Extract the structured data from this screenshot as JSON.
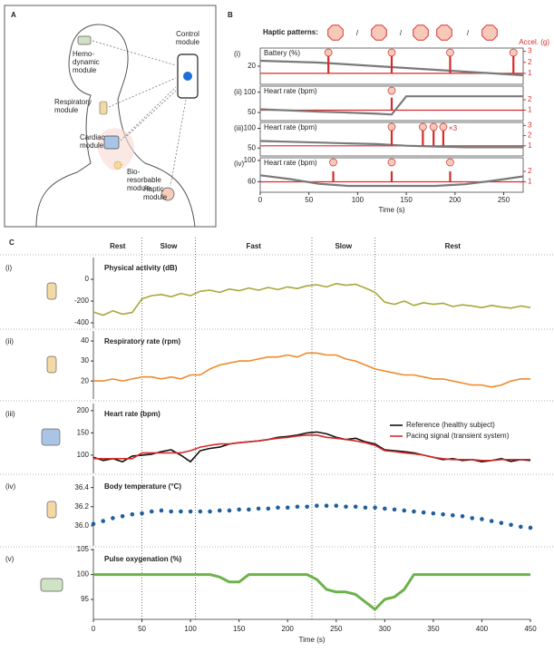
{
  "panel_a": {
    "label": "A",
    "modules": [
      {
        "name": [
          "Hemo-",
          "dynamic",
          "module"
        ]
      },
      {
        "name": [
          "Control",
          "module"
        ]
      },
      {
        "name": [
          "Respiratory",
          "module"
        ]
      },
      {
        "name": [
          "Cardiac",
          "module"
        ]
      },
      {
        "name": [
          "Bio-",
          "resorbable",
          "module"
        ]
      },
      {
        "name": [
          "Haptic",
          "module"
        ]
      }
    ]
  },
  "panel_b": {
    "label": "B",
    "haptic_label": "Haptic patterns:",
    "separator": "/",
    "right_axis_label": "Accel. (g)",
    "x_label": "Time (s)",
    "xlim": [
      0,
      270
    ],
    "xticks": [
      0,
      50,
      100,
      150,
      200,
      250
    ],
    "x": [
      0,
      30,
      60,
      90,
      120,
      135,
      150,
      180,
      210,
      240,
      270
    ],
    "y2lim": [
      0,
      3.3
    ],
    "accel_baseline": 1,
    "charts": [
      {
        "roman": "(i)",
        "title": "Battery (%)",
        "ylim": [
          10,
          30
        ],
        "yticks": [
          20
        ],
        "values": [
          23,
          22.5,
          22,
          21,
          20,
          19.5,
          19,
          18,
          17,
          16,
          15
        ],
        "y2ticks": [
          1,
          2,
          3
        ],
        "spikes_x": [
          70,
          135,
          195,
          260
        ],
        "spikes": [
          3,
          3,
          3,
          3
        ]
      },
      {
        "roman": "(ii)",
        "title": "Heart rate (bpm)",
        "ylim": [
          30,
          115
        ],
        "yticks": [
          50,
          100
        ],
        "values": [
          58,
          55,
          52,
          50,
          47,
          45,
          90,
          90,
          90,
          90,
          90
        ],
        "y2ticks": [
          1,
          2
        ],
        "spikes_x": [
          135
        ],
        "spikes": [
          2.2
        ]
      },
      {
        "roman": "(iii)",
        "title": "Heart rate (bpm)",
        "ylim": [
          30,
          115
        ],
        "yticks": [
          50,
          100
        ],
        "values": [
          68,
          66,
          64,
          62,
          60,
          58,
          56,
          54,
          52,
          52,
          52
        ],
        "y2ticks": [
          1,
          2,
          3
        ],
        "spikes_x": [
          135,
          167,
          178,
          188
        ],
        "spikes": [
          2.8,
          2.8,
          2.8,
          2.8
        ],
        "annotation": "×3"
      },
      {
        "roman": "(iv)",
        "title": "Heart rate (bpm)",
        "ylim": [
          40,
          105
        ],
        "yticks": [
          60,
          100
        ],
        "values": [
          72,
          65,
          56,
          52,
          52,
          52,
          52,
          52,
          55,
          62,
          70
        ],
        "y2ticks": [
          1,
          2
        ],
        "spikes_x": [
          75,
          135,
          195
        ],
        "spikes": [
          2,
          2,
          2
        ]
      }
    ]
  },
  "panel_c": {
    "label": "C",
    "x_label": "Time (s)",
    "xlim": [
      0,
      450
    ],
    "xticks": [
      0,
      50,
      100,
      150,
      200,
      250,
      300,
      350,
      400,
      450
    ],
    "x": [
      0,
      10,
      20,
      30,
      40,
      50,
      60,
      70,
      80,
      90,
      100,
      110,
      120,
      130,
      140,
      150,
      160,
      170,
      180,
      190,
      200,
      210,
      220,
      230,
      240,
      250,
      260,
      270,
      280,
      290,
      300,
      310,
      320,
      330,
      340,
      350,
      360,
      370,
      380,
      390,
      400,
      410,
      420,
      430,
      440,
      450
    ],
    "phases": [
      {
        "name": "Rest",
        "start": 0,
        "end": 50
      },
      {
        "name": "Slow",
        "start": 50,
        "end": 105
      },
      {
        "name": "Fast",
        "start": 105,
        "end": 225
      },
      {
        "name": "Slow",
        "start": 225,
        "end": 290
      },
      {
        "name": "Rest",
        "start": 290,
        "end": 450
      }
    ],
    "charts": [
      {
        "roman": "(i)",
        "title": "Physical activity (dB)",
        "ylim": [
          -450,
          200
        ],
        "yticks": [
          -400,
          -200,
          0
        ],
        "series": [
          {
            "color": "#a9a83c",
            "style": "line",
            "values": [
              -300,
              -330,
              -290,
              -320,
              -305,
              -180,
              -150,
              -140,
              -160,
              -130,
              -150,
              -110,
              -100,
              -120,
              -90,
              -105,
              -80,
              -100,
              -75,
              -95,
              -70,
              -85,
              -60,
              -50,
              -70,
              -40,
              -55,
              -45,
              -80,
              -120,
              -210,
              -230,
              -200,
              -240,
              -215,
              -230,
              -220,
              -250,
              -235,
              -245,
              -260,
              -240,
              -255,
              -265,
              -245,
              -260
            ]
          }
        ]
      },
      {
        "roman": "(ii)",
        "title": "Respiratory rate (rpm)",
        "ylim": [
          11,
          45
        ],
        "yticks": [
          20,
          30,
          40
        ],
        "series": [
          {
            "color": "#f08a2c",
            "style": "line",
            "values": [
              20,
              20,
              21,
              20,
              21,
              22,
              22,
              21,
              22,
              21,
              23,
              23,
              26,
              28,
              29,
              30,
              30,
              31,
              32,
              32,
              33,
              32,
              34,
              34,
              33,
              33,
              31,
              30,
              28,
              26,
              25,
              24,
              23,
              23,
              22,
              21,
              21,
              20,
              19,
              18,
              18,
              17,
              18,
              20,
              21,
              21
            ]
          }
        ]
      },
      {
        "roman": "(iii)",
        "title": "Heart rate (bpm)",
        "ylim": [
          59,
          216
        ],
        "yticks": [
          100,
          150,
          200
        ],
        "series": [
          {
            "name": "Reference (healthy subject)",
            "color": "#111111",
            "style": "line",
            "values": [
              95,
              88,
              92,
              85,
              98,
              100,
              102,
              108,
              112,
              100,
              85,
              110,
              115,
              118,
              125,
              128,
              130,
              132,
              135,
              140,
              142,
              145,
              150,
              152,
              148,
              140,
              135,
              138,
              130,
              125,
              112,
              110,
              108,
              105,
              100,
              95,
              90,
              92,
              88,
              90,
              85,
              88,
              92,
              86,
              90,
              88
            ]
          },
          {
            "name": "Pacing signal (transient system)",
            "color": "#d62b2b",
            "style": "line",
            "values": [
              92,
              92,
              92,
              92,
              92,
              105,
              105,
              105,
              105,
              105,
              110,
              118,
              122,
              125,
              125,
              128,
              130,
              132,
              135,
              138,
              140,
              143,
              145,
              145,
              140,
              138,
              135,
              132,
              128,
              122,
              110,
              108,
              105,
              103,
              100,
              95,
              92,
              90,
              90,
              90,
              88,
              88,
              90,
              90,
              90,
              90
            ]
          }
        ]
      },
      {
        "roman": "(iv)",
        "title": "Body temperature (°C)",
        "ylim": [
          35.79,
          36.52
        ],
        "yticks": [
          {
            "value": 36,
            "label": "36.0"
          },
          36.2,
          36.4
        ],
        "series": [
          {
            "color": "#1f5f9e",
            "style": "markers",
            "values": [
              36.02,
              36.05,
              36.08,
              36.1,
              36.12,
              36.13,
              36.15,
              36.16,
              36.15,
              36.15,
              36.15,
              36.15,
              36.15,
              36.16,
              36.16,
              36.17,
              36.17,
              36.18,
              36.18,
              36.19,
              36.19,
              36.2,
              36.2,
              36.21,
              36.21,
              36.21,
              36.2,
              36.2,
              36.19,
              36.19,
              36.18,
              36.17,
              36.16,
              36.15,
              36.14,
              36.13,
              36.12,
              36.11,
              36.1,
              36.08,
              36.07,
              36.05,
              36.03,
              36.01,
              35.99,
              35.98
            ]
          }
        ]
      },
      {
        "roman": "(v)",
        "title": "Pulse oxygenation (%)",
        "ylim": [
          91,
          105.2
        ],
        "yticks": [
          95,
          100,
          105
        ],
        "series": [
          {
            "color": "#6db24a",
            "style": "thick",
            "values": [
              100,
              100,
              100,
              100,
              100,
              100,
              100,
              100,
              100,
              100,
              100,
              100,
              100,
              99.5,
              98.5,
              98.5,
              100,
              100,
              100,
              100,
              100,
              100,
              100,
              99,
              97,
              96.5,
              96.5,
              96,
              94.5,
              93,
              95,
              95.5,
              97,
              100,
              100,
              100,
              100,
              100,
              100,
              100,
              100,
              100,
              100,
              100,
              100,
              100
            ]
          }
        ]
      }
    ]
  }
}
